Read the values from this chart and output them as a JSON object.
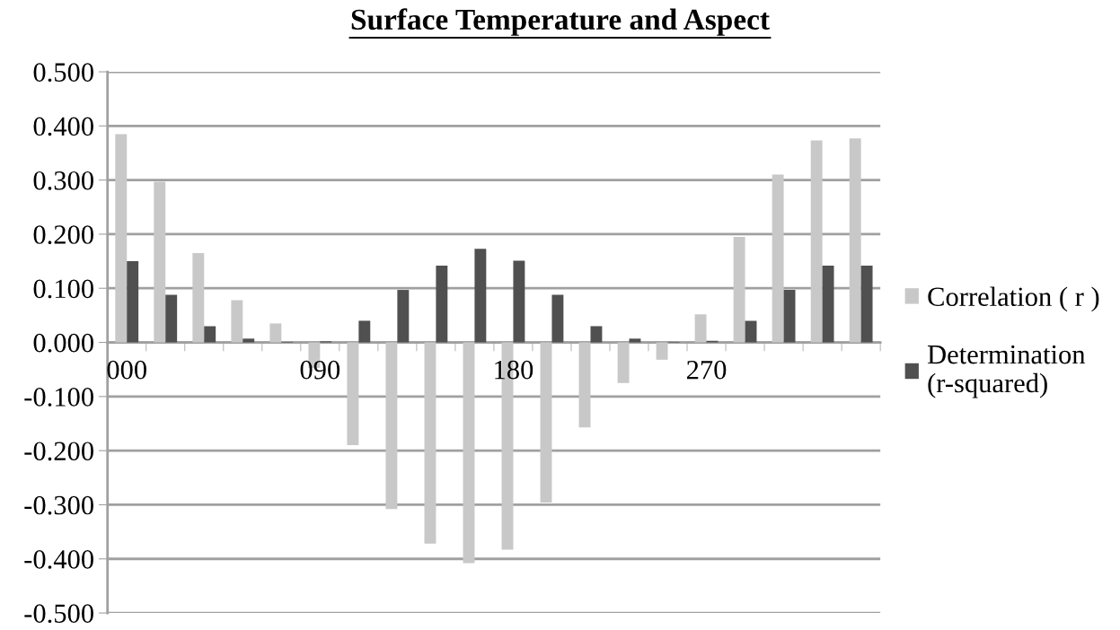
{
  "chart_data": {
    "type": "bar",
    "title": "Surface Temperature and Aspect",
    "categories": [
      "000",
      null,
      null,
      null,
      null,
      "090",
      null,
      null,
      null,
      null,
      "180",
      null,
      null,
      null,
      null,
      "270",
      null,
      null,
      null,
      null
    ],
    "series": [
      {
        "name": "Correlation ( r )",
        "color": "#c8c8c8",
        "values": [
          0.385,
          0.297,
          0.165,
          0.078,
          0.035,
          -0.047,
          -0.19,
          -0.308,
          -0.372,
          -0.408,
          -0.383,
          -0.296,
          -0.157,
          -0.075,
          -0.032,
          0.052,
          0.195,
          0.31,
          0.373,
          0.377
        ]
      },
      {
        "name": "Determination (r-squared)",
        "color": "#505050",
        "values": [
          0.15,
          0.088,
          0.03,
          0.007,
          0.001,
          0.002,
          0.04,
          0.097,
          0.142,
          0.173,
          0.151,
          0.088,
          0.03,
          0.007,
          0.001,
          0.003,
          0.04,
          0.097,
          0.142,
          0.142
        ]
      }
    ],
    "ylim": [
      -0.5,
      0.5
    ],
    "yticks": [
      {
        "value": -0.5,
        "label": "-0.500"
      },
      {
        "value": -0.4,
        "label": "-0.400"
      },
      {
        "value": -0.3,
        "label": "-0.300"
      },
      {
        "value": -0.2,
        "label": "-0.200"
      },
      {
        "value": -0.1,
        "label": "-0.100"
      },
      {
        "value": 0,
        "label": "0.000"
      },
      {
        "value": 0.1,
        "label": "0.100"
      },
      {
        "value": 0.2,
        "label": "0.200"
      },
      {
        "value": 0.3,
        "label": "0.300"
      },
      {
        "value": 0.4,
        "label": "0.400"
      },
      {
        "value": 0.5,
        "label": "0.500"
      }
    ],
    "grid": "y",
    "legend": "right"
  }
}
